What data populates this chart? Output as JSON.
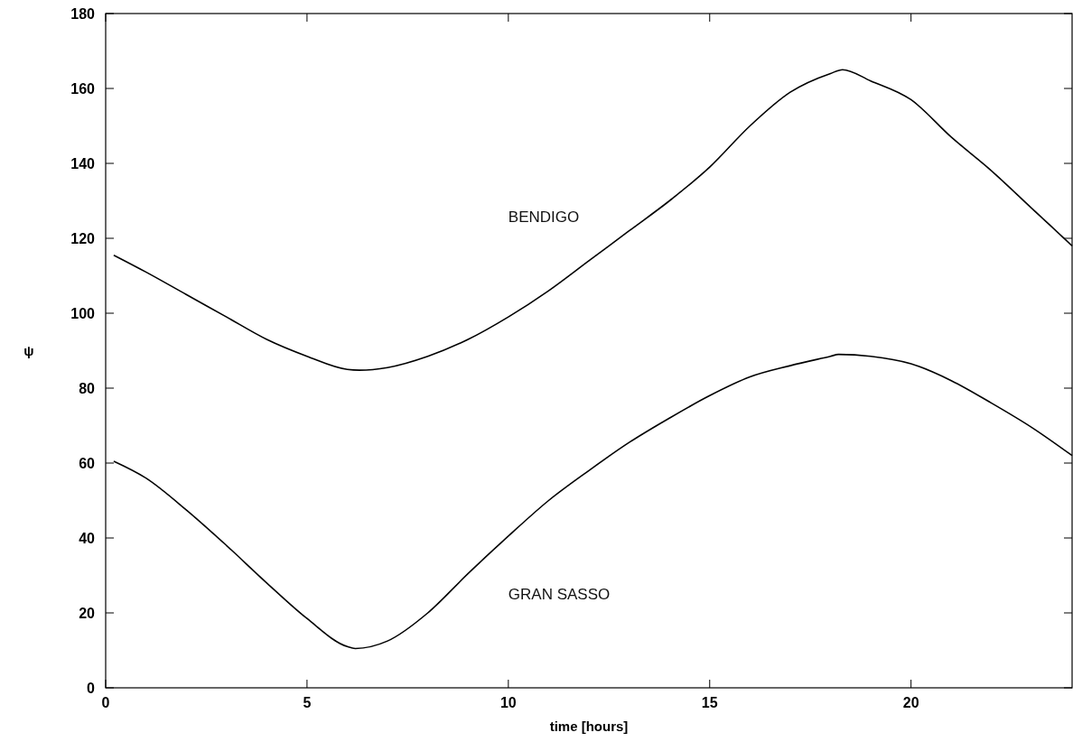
{
  "chart_data": {
    "type": "line",
    "xlabel": "time [hours]",
    "ylabel": "ψ",
    "xlim": [
      0,
      24
    ],
    "ylim": [
      0,
      180
    ],
    "xticks": [
      0,
      5,
      10,
      15,
      20
    ],
    "yticks": [
      0,
      20,
      40,
      60,
      80,
      100,
      120,
      140,
      160,
      180
    ],
    "grid": false,
    "marker": "none",
    "line_style": "solid",
    "series": [
      {
        "name": "BENDIGO",
        "color": "#000000",
        "x": [
          0.2,
          1,
          2,
          3,
          4,
          5,
          6,
          6.3,
          7,
          8,
          9,
          10,
          11,
          12,
          13,
          14,
          15,
          16,
          17,
          18,
          18.3,
          19,
          20,
          21,
          22,
          23,
          24
        ],
        "values": [
          115.5,
          111,
          105,
          99,
          93,
          88.5,
          85,
          84.8,
          85.5,
          88.5,
          93,
          99,
          106,
          114,
          122,
          130,
          139,
          150,
          159,
          164,
          165,
          162,
          157,
          147,
          138,
          128,
          118
        ]
      },
      {
        "name": "GRAN SASSO",
        "color": "#000000",
        "x": [
          0.2,
          1,
          2,
          3,
          4,
          5,
          6,
          6.2,
          7,
          8,
          9,
          10,
          11,
          12,
          13,
          14,
          15,
          16,
          17,
          18,
          18.2,
          19,
          20,
          21,
          22,
          23,
          24
        ],
        "values": [
          60.5,
          56,
          47.5,
          38,
          28,
          18.5,
          11,
          10.5,
          12.5,
          20,
          30.5,
          40.5,
          50,
          58,
          65.5,
          72,
          78,
          83,
          86,
          88.5,
          89,
          88.5,
          86.5,
          82,
          76,
          69.5,
          62
        ]
      }
    ]
  }
}
